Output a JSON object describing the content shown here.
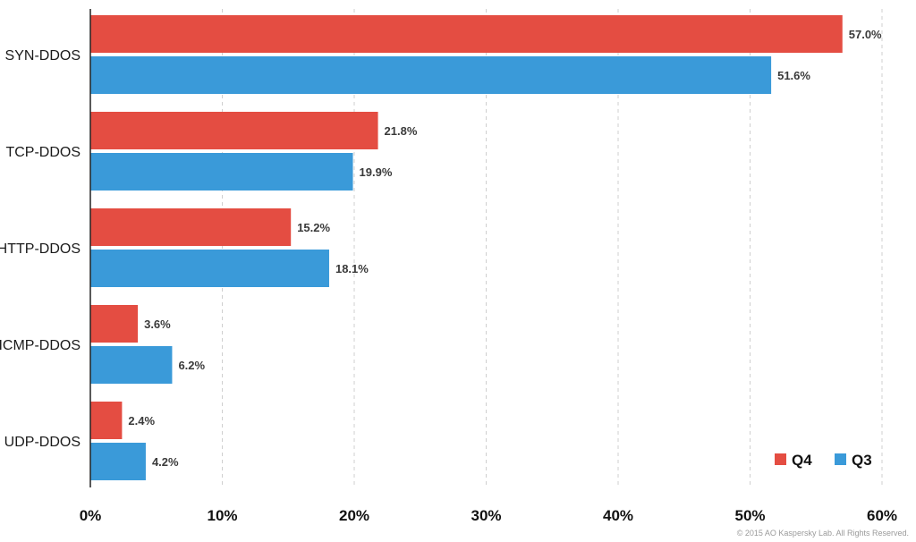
{
  "chart_data": {
    "type": "bar",
    "orientation": "horizontal",
    "categories": [
      "SYN-DDOS",
      "TCP-DDOS",
      "HTTP-DDOS",
      "ICMP-DDOS",
      "UDP-DDOS"
    ],
    "series": [
      {
        "name": "Q4",
        "color": "#e44d42",
        "values": [
          57.0,
          21.8,
          15.2,
          3.6,
          2.4
        ],
        "labels": [
          "57.0%",
          "21.8%",
          "15.2%",
          "3.6%",
          "2.4%"
        ]
      },
      {
        "name": "Q3",
        "color": "#3a9ad9",
        "values": [
          51.6,
          19.9,
          18.1,
          6.2,
          4.2
        ],
        "labels": [
          "51.6%",
          "19.9%",
          "18.1%",
          "6.2%",
          "4.2%"
        ]
      }
    ],
    "xlim": [
      0,
      60
    ],
    "xticks": [
      0,
      10,
      20,
      30,
      40,
      50,
      60
    ],
    "xtick_labels": [
      "0%",
      "10%",
      "20%",
      "30%",
      "40%",
      "50%",
      "60%"
    ],
    "grid": "vertical dashed",
    "legend_position": "bottom-right",
    "title": "",
    "xlabel": "",
    "ylabel": ""
  },
  "footer": {
    "copyright": "© 2015 AO Kaspersky Lab. All Rights Reserved."
  }
}
